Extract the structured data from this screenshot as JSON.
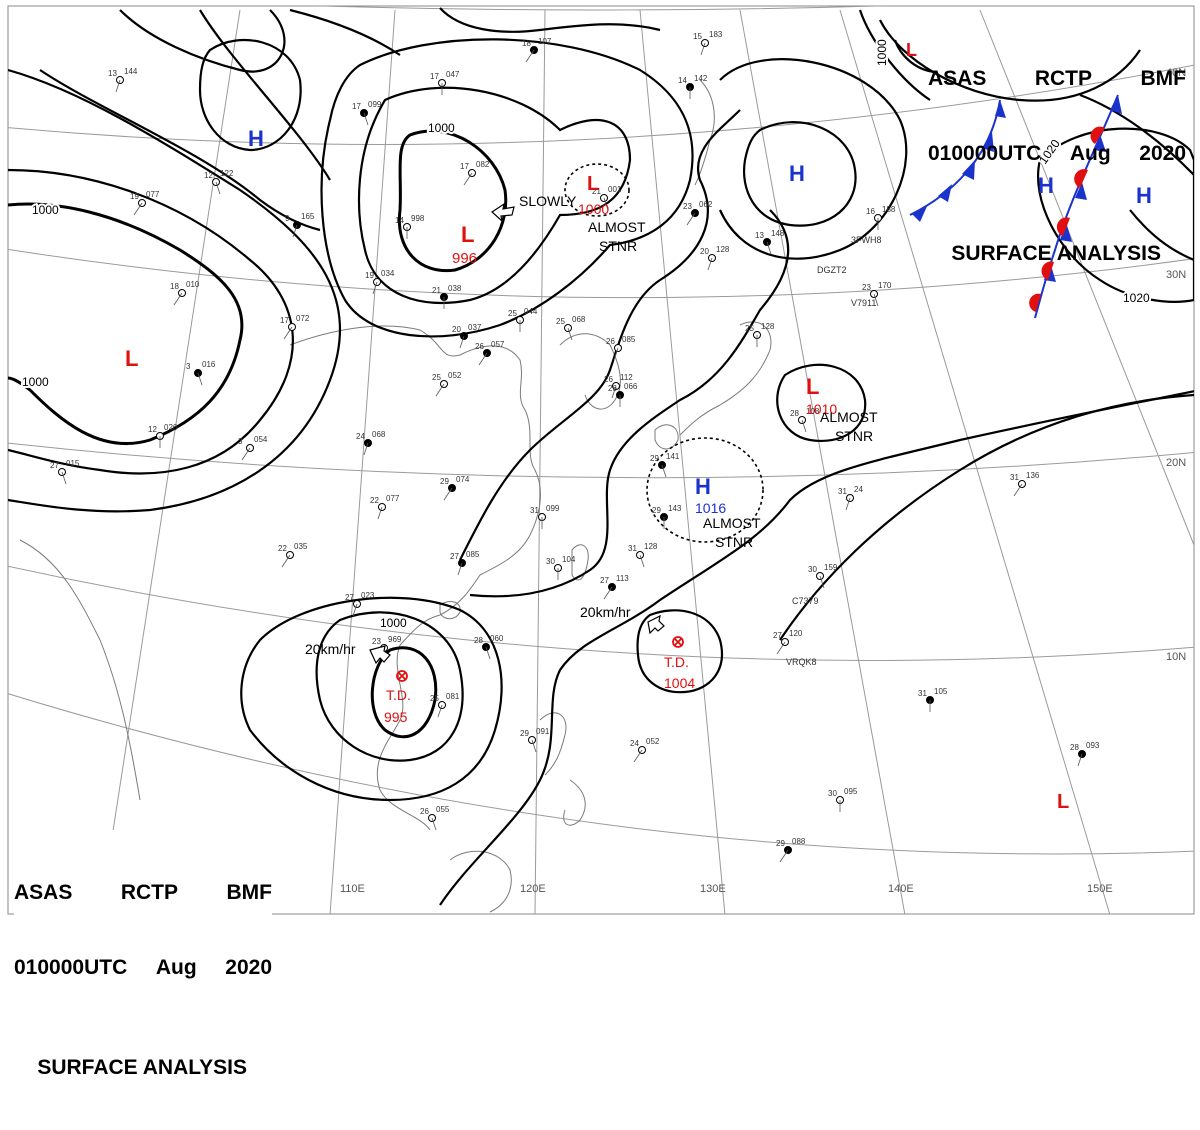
{
  "header": {
    "agency": "ASAS",
    "station": "RCTP",
    "code": "BMF",
    "valid_time": "010000UTC",
    "month": "Aug",
    "year": "2020",
    "product": "SURFACE ANALYSIS"
  },
  "axes": {
    "longitude_labels": [
      "110E",
      "120E",
      "130E",
      "140E",
      "150E"
    ],
    "latitude_labels": [
      "40N",
      "30N",
      "20N",
      "10N"
    ]
  },
  "isobars": {
    "labels": [
      "1000",
      "1000",
      "1000",
      "1020",
      "1020",
      "1000",
      "1000"
    ]
  },
  "pressure_centers": [
    {
      "kind": "H",
      "color": "#1a33cc",
      "value": ""
    },
    {
      "kind": "H",
      "color": "#1a33cc",
      "value": ""
    },
    {
      "kind": "H",
      "color": "#1a33cc",
      "value": ""
    },
    {
      "kind": "H",
      "color": "#1a33cc",
      "value": ""
    },
    {
      "kind": "L",
      "color": "#e01010",
      "value": "996"
    },
    {
      "kind": "L",
      "color": "#e01010",
      "value": "1000"
    },
    {
      "kind": "L",
      "color": "#e01010",
      "value": ""
    },
    {
      "kind": "L",
      "color": "#e01010",
      "value": "1010"
    },
    {
      "kind": "L",
      "color": "#e01010",
      "value": ""
    },
    {
      "kind": "L",
      "color": "#e01010",
      "value": ""
    },
    {
      "kind": "H",
      "color": "#1a33cc",
      "value": "1016"
    }
  ],
  "tropical_depressions": [
    {
      "label": "T.D.",
      "pressure": "995",
      "color": "#e01010"
    },
    {
      "label": "T.D.",
      "pressure": "1004",
      "color": "#e01010"
    }
  ],
  "motion_annotations": {
    "slowly": "SLOWLY",
    "almost_stnr_1": "ALMOST\nSTNR",
    "almost_stnr_2": "ALMOST\nSTNR",
    "almost_stnr_3": "ALMOST\nSTNR",
    "speed_1": "20km/hr",
    "speed_2": "20km/hr"
  },
  "station_plots": [
    {
      "t": "18",
      "p": "107"
    },
    {
      "t": "13",
      "p": "144"
    },
    {
      "t": "17",
      "p": "047"
    },
    {
      "t": "17",
      "p": "099"
    },
    {
      "t": "17",
      "p": "082"
    },
    {
      "t": "15",
      "p": "183"
    },
    {
      "t": "14",
      "p": "142"
    },
    {
      "t": "12",
      "p": "122"
    },
    {
      "t": "19",
      "p": "077"
    },
    {
      "t": "9",
      "p": "165"
    },
    {
      "t": "14",
      "p": "998"
    },
    {
      "t": "21",
      "p": "001"
    },
    {
      "t": "23",
      "p": "062"
    },
    {
      "t": "20",
      "p": "128"
    },
    {
      "t": "16",
      "p": "188"
    },
    {
      "t": "13",
      "p": "148"
    },
    {
      "t": "18",
      "p": "010"
    },
    {
      "t": "19",
      "p": "034"
    },
    {
      "t": "21",
      "p": "038"
    },
    {
      "t": "23",
      "p": "170"
    },
    {
      "t": "17",
      "p": "072"
    },
    {
      "t": "20",
      "p": "037"
    },
    {
      "t": "25",
      "p": "044"
    },
    {
      "t": "25",
      "p": "068"
    },
    {
      "t": "26",
      "p": "057"
    },
    {
      "t": "26",
      "p": "085"
    },
    {
      "t": "25",
      "p": "128"
    },
    {
      "t": "3",
      "p": "016"
    },
    {
      "t": "25",
      "p": "052"
    },
    {
      "t": "26",
      "p": "112"
    },
    {
      "t": "26",
      "p": "066"
    },
    {
      "t": "28",
      "p": "108"
    },
    {
      "t": "3",
      "p": "054"
    },
    {
      "t": "24",
      "p": "068"
    },
    {
      "t": "12",
      "p": "026"
    },
    {
      "t": "27",
      "p": "015"
    },
    {
      "t": "29",
      "p": "074"
    },
    {
      "t": "22",
      "p": "077"
    },
    {
      "t": "31",
      "p": "099"
    },
    {
      "t": "29",
      "p": "141"
    },
    {
      "t": "31",
      "p": "136"
    },
    {
      "t": "31",
      "p": "24"
    },
    {
      "t": "29",
      "p": "143"
    },
    {
      "t": "31",
      "p": "128"
    },
    {
      "t": "22",
      "p": "035"
    },
    {
      "t": "27",
      "p": "085"
    },
    {
      "t": "30",
      "p": "104"
    },
    {
      "t": "30",
      "p": "159"
    },
    {
      "t": "27",
      "p": "113"
    },
    {
      "t": "27",
      "p": "023"
    },
    {
      "t": "23",
      "p": "969"
    },
    {
      "t": "28",
      "p": "060"
    },
    {
      "t": "27",
      "p": "120"
    },
    {
      "t": "25",
      "p": "081"
    },
    {
      "t": "31",
      "p": "105"
    },
    {
      "t": "29",
      "p": "091"
    },
    {
      "t": "24",
      "p": "052"
    },
    {
      "t": "28",
      "p": "093"
    },
    {
      "t": "30",
      "p": "095"
    },
    {
      "t": "26",
      "p": "055"
    },
    {
      "t": "29",
      "p": "088"
    }
  ],
  "ship_ids": [
    "DGZT2",
    "3FWH8",
    "V7911",
    "C7379",
    "VRQK8"
  ],
  "fronts": [
    "stationary-front",
    "stationary-front"
  ]
}
